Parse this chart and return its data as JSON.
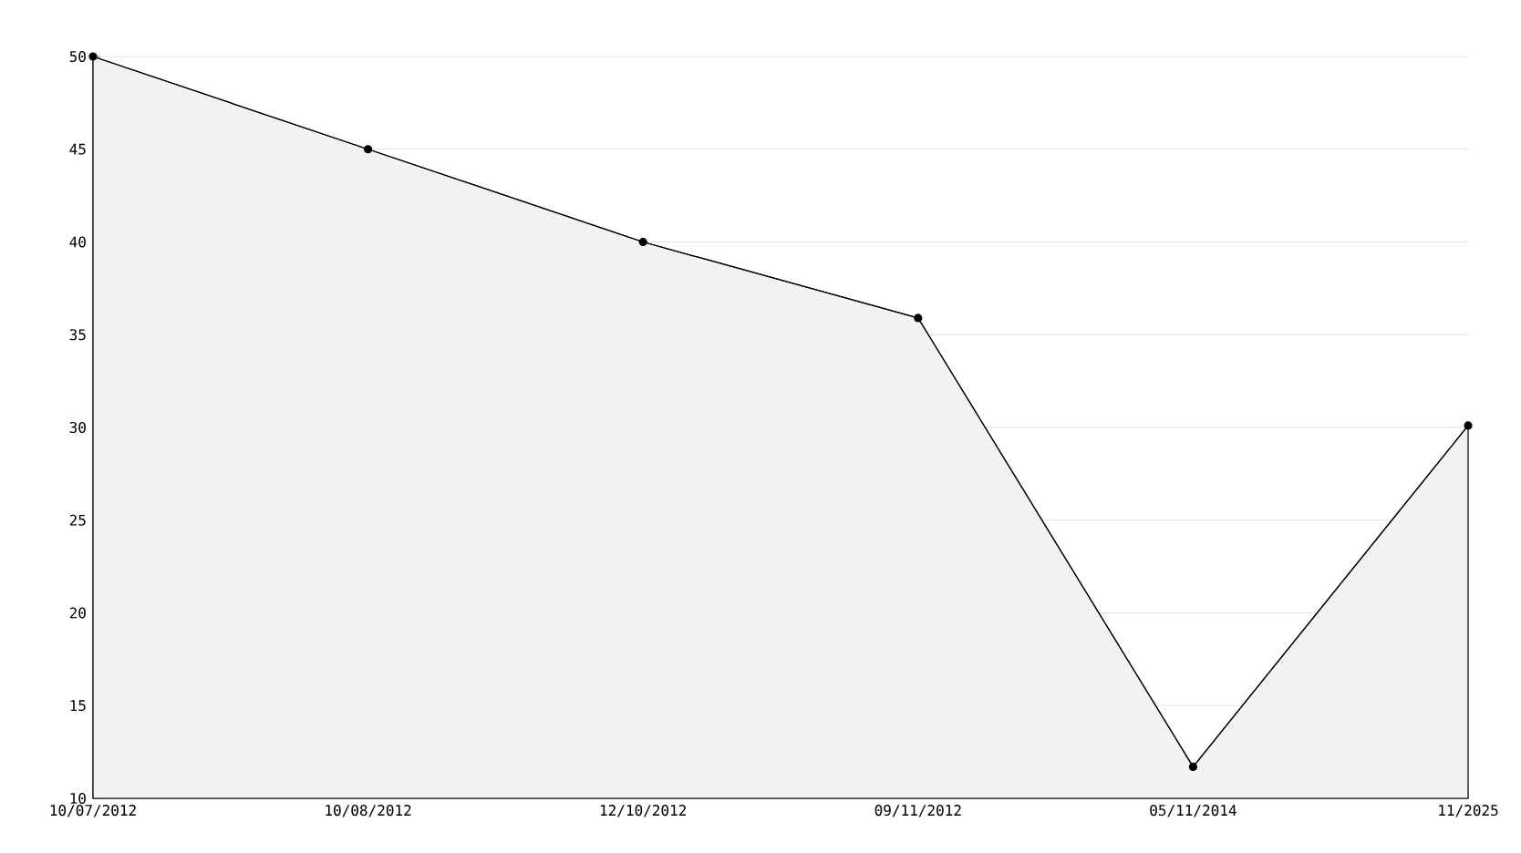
{
  "chart_data": {
    "type": "area",
    "categories": [
      "10/07/2012",
      "10/08/2012",
      "12/10/2012",
      "09/11/2012",
      "05/11/2014",
      "11/2025"
    ],
    "values": [
      50,
      45,
      40,
      35.9,
      11.7,
      30.1
    ],
    "color": "#000000",
    "ylim": [
      10,
      50
    ],
    "yticks": [
      10,
      15,
      20,
      25,
      30,
      35,
      40,
      45,
      50
    ],
    "grid": "y",
    "marker": "circle",
    "line_style": "solid"
  }
}
